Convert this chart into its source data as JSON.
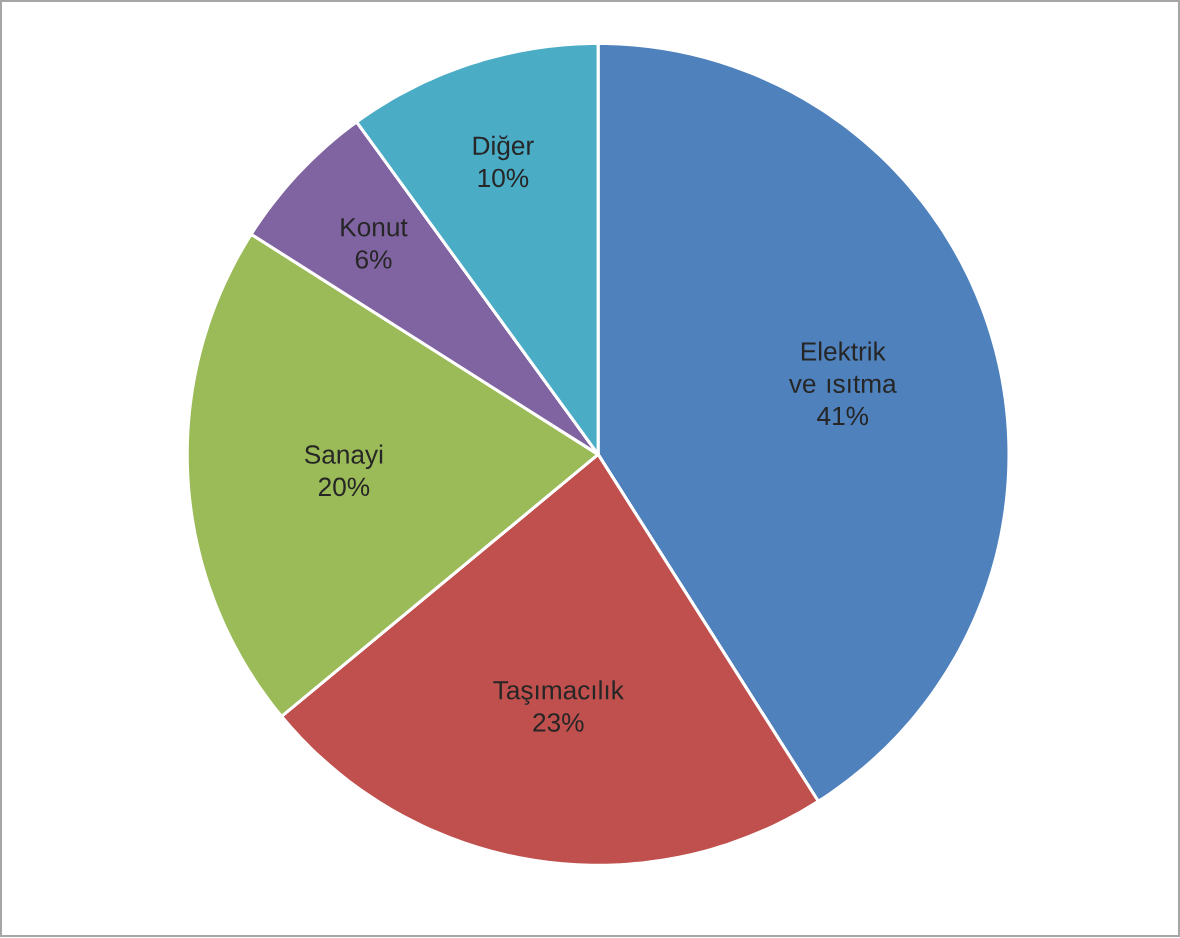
{
  "chart_data": {
    "type": "pie",
    "categories": [
      "Elektrik ve ısıtma",
      "Taşımacılık",
      "Sanayi",
      "Konut",
      "Diğer"
    ],
    "values": [
      41,
      23,
      20,
      6,
      10
    ],
    "colors": [
      "#4f81bd",
      "#c0504d",
      "#9bbb59",
      "#8064a2",
      "#4bacc6"
    ],
    "value_labels": [
      "41%",
      "23%",
      "20%",
      "6%",
      "10%"
    ]
  }
}
